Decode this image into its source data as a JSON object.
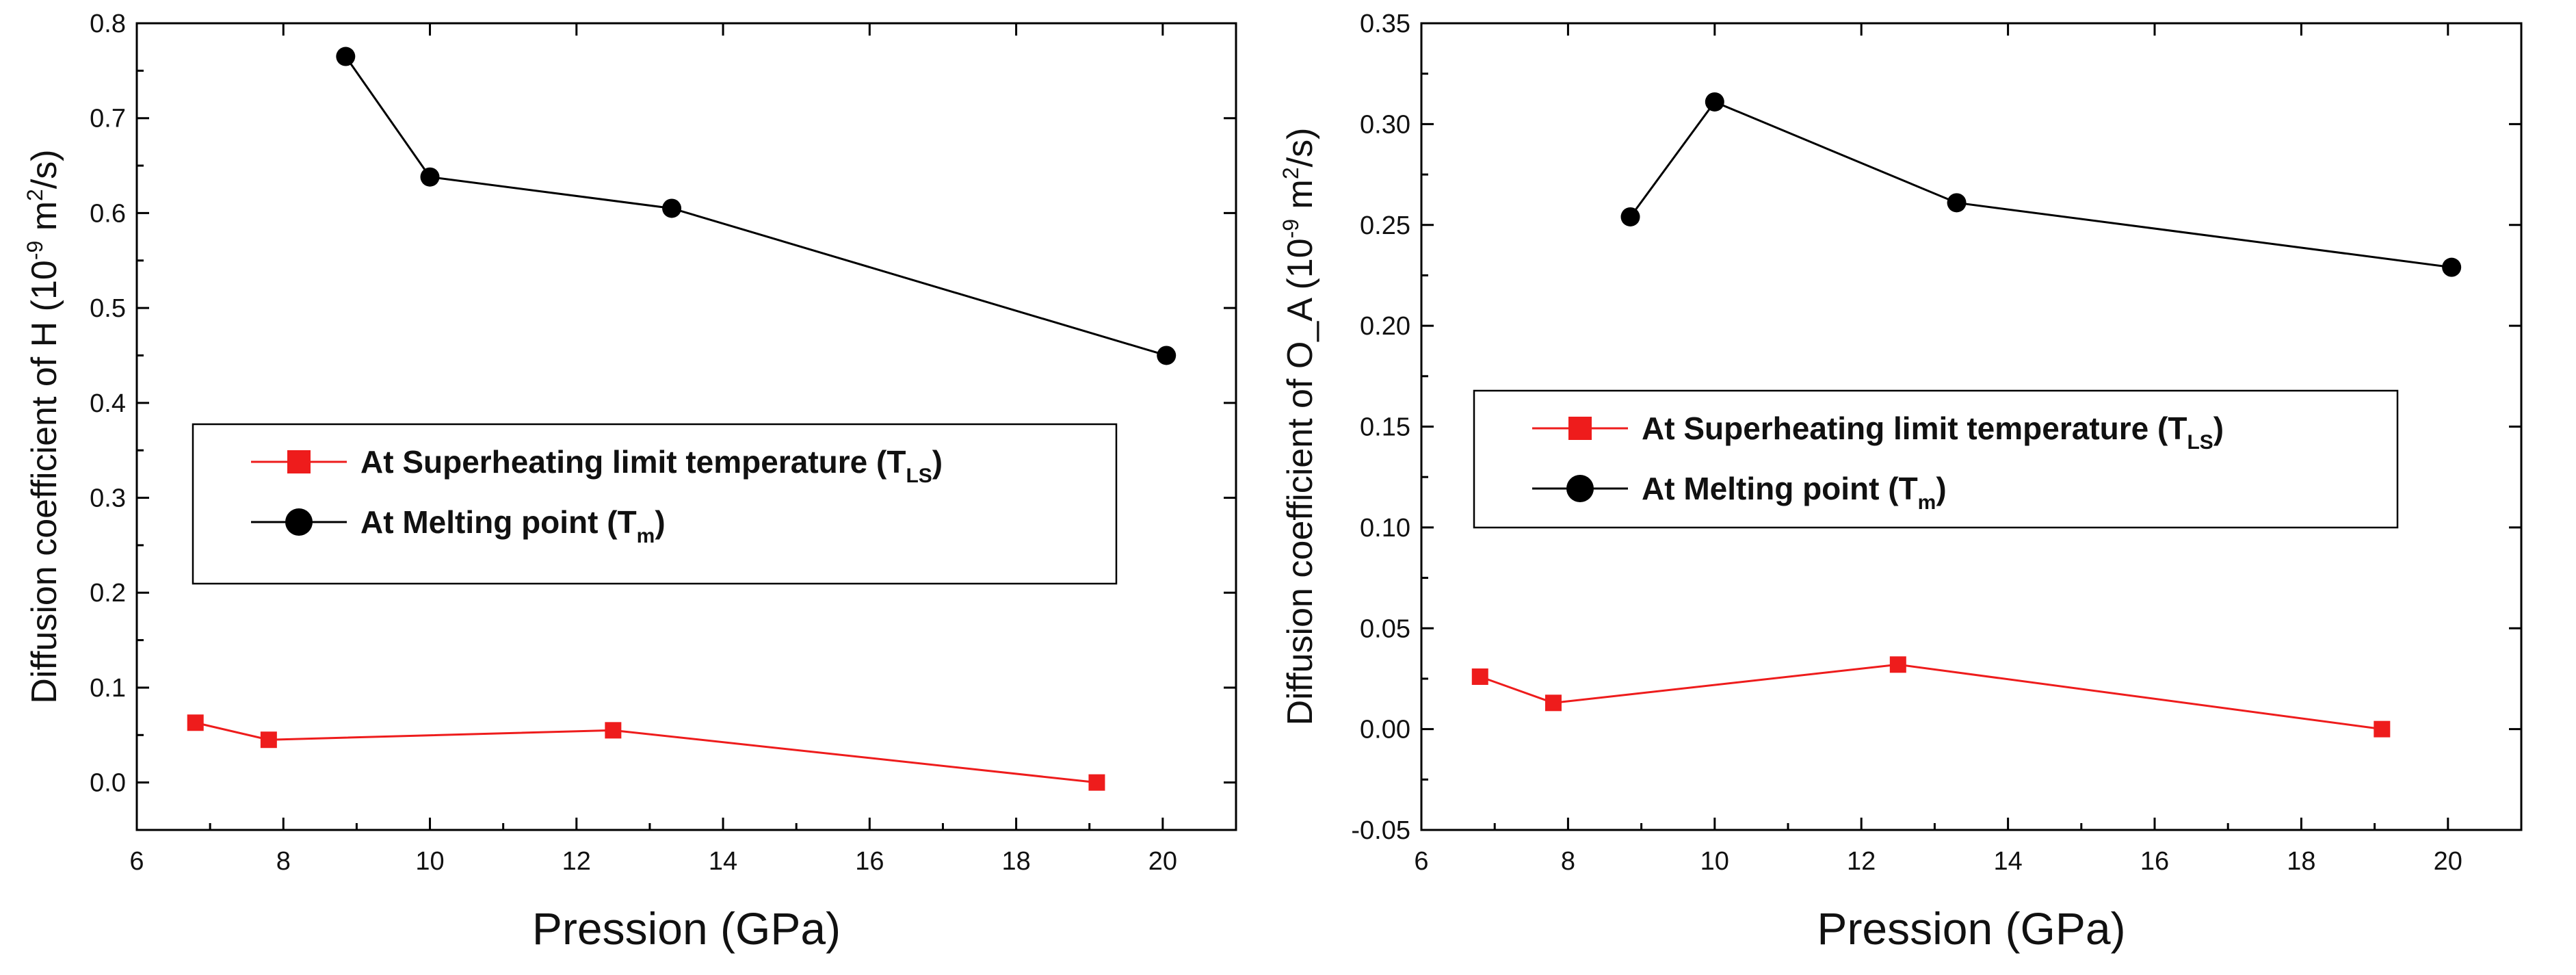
{
  "chart_data": [
    {
      "type": "line",
      "xlabel": "Pression (GPa)",
      "ylabel": {
        "prefix": "Diffusion coefficient of H (10",
        "exp1": "-9",
        "mid": " m",
        "exp2": "2",
        "suffix": "/s)"
      },
      "xlim": [
        6,
        21
      ],
      "ylim": [
        -0.05,
        0.8
      ],
      "xticks": [
        6,
        8,
        10,
        12,
        14,
        16,
        18,
        20
      ],
      "yticks": [
        0.0,
        0.1,
        0.2,
        0.3,
        0.4,
        0.5,
        0.6,
        0.7,
        0.8
      ],
      "yticks_labels": [
        "0.0",
        "0.1",
        "0.2",
        "0.3",
        "0.4",
        "0.5",
        "0.6",
        "0.7",
        "0.8"
      ],
      "legend": {
        "position": "center-left",
        "entries": [
          {
            "text": "At Superheating limit temperature (T",
            "sub": "LS",
            "close": ")",
            "marker": "square",
            "color": "#ee1c1c"
          },
          {
            "text": "At Melting point (T",
            "sub": "m",
            "close": ")",
            "marker": "circle",
            "color": "#000000"
          }
        ]
      },
      "series": [
        {
          "name": "At Superheating limit temperature (TLS)",
          "color": "#ee1c1c",
          "marker": "square",
          "x": [
            6.8,
            7.8,
            12.5,
            19.1
          ],
          "y": [
            0.063,
            0.045,
            0.055,
            0.0
          ]
        },
        {
          "name": "At Melting point (Tm)",
          "color": "#000000",
          "marker": "circle",
          "x": [
            8.85,
            10.0,
            13.3,
            20.05
          ],
          "y": [
            0.765,
            0.638,
            0.605,
            0.45
          ]
        }
      ]
    },
    {
      "type": "line",
      "xlabel": "Pression (GPa)",
      "ylabel": {
        "prefix": "Diffusion coefficient of O_A (10",
        "exp1": "-9",
        "mid": " m",
        "exp2": "2",
        "suffix": "/s)"
      },
      "xlim": [
        6,
        21
      ],
      "ylim": [
        -0.05,
        0.35
      ],
      "xticks": [
        6,
        8,
        10,
        12,
        14,
        16,
        18,
        20
      ],
      "yticks": [
        -0.05,
        0.0,
        0.05,
        0.1,
        0.15,
        0.2,
        0.25,
        0.3,
        0.35
      ],
      "yticks_labels": [
        "-0.05",
        "0.00",
        "0.05",
        "0.10",
        "0.15",
        "0.20",
        "0.25",
        "0.30",
        "0.35"
      ],
      "legend": {
        "position": "center-left",
        "entries": [
          {
            "text": "At Superheating limit temperature (T",
            "sub": "LS",
            "close": ")",
            "marker": "square",
            "color": "#ee1c1c"
          },
          {
            "text": "At Melting point (T",
            "sub": "m",
            "close": ")",
            "marker": "circle",
            "color": "#000000"
          }
        ]
      },
      "series": [
        {
          "name": "At Superheating limit temperature (TLS)",
          "color": "#ee1c1c",
          "marker": "square",
          "x": [
            6.8,
            7.8,
            12.5,
            19.1
          ],
          "y": [
            0.026,
            0.013,
            0.032,
            0.0
          ]
        },
        {
          "name": "At Melting point (Tm)",
          "color": "#000000",
          "marker": "circle",
          "x": [
            8.85,
            10.0,
            13.3,
            20.05
          ],
          "y": [
            0.254,
            0.311,
            0.261,
            0.229
          ]
        }
      ]
    }
  ]
}
